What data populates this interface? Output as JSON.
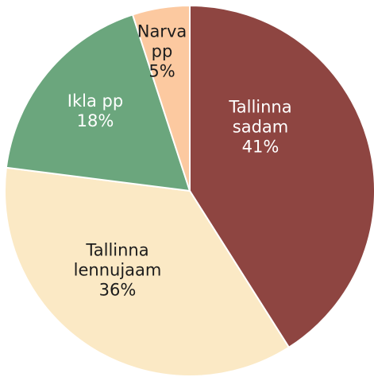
{
  "chart_data": {
    "type": "pie",
    "categories": [
      "Tallinna sadam",
      "Tallinna lennujaam",
      "Ikla pp",
      "Narva pp"
    ],
    "values": [
      41,
      36,
      18,
      5
    ],
    "value_labels": [
      "41%",
      "36%",
      "18%",
      "5%"
    ],
    "colors": [
      "#8e4541",
      "#fbe9c5",
      "#6ba67d",
      "#fcc9a0"
    ],
    "label_colors": [
      "#ffffff",
      "#1c1c1c",
      "#ffffff",
      "#1c1c1c"
    ],
    "start_angle": 0,
    "direction": "clockwise"
  }
}
